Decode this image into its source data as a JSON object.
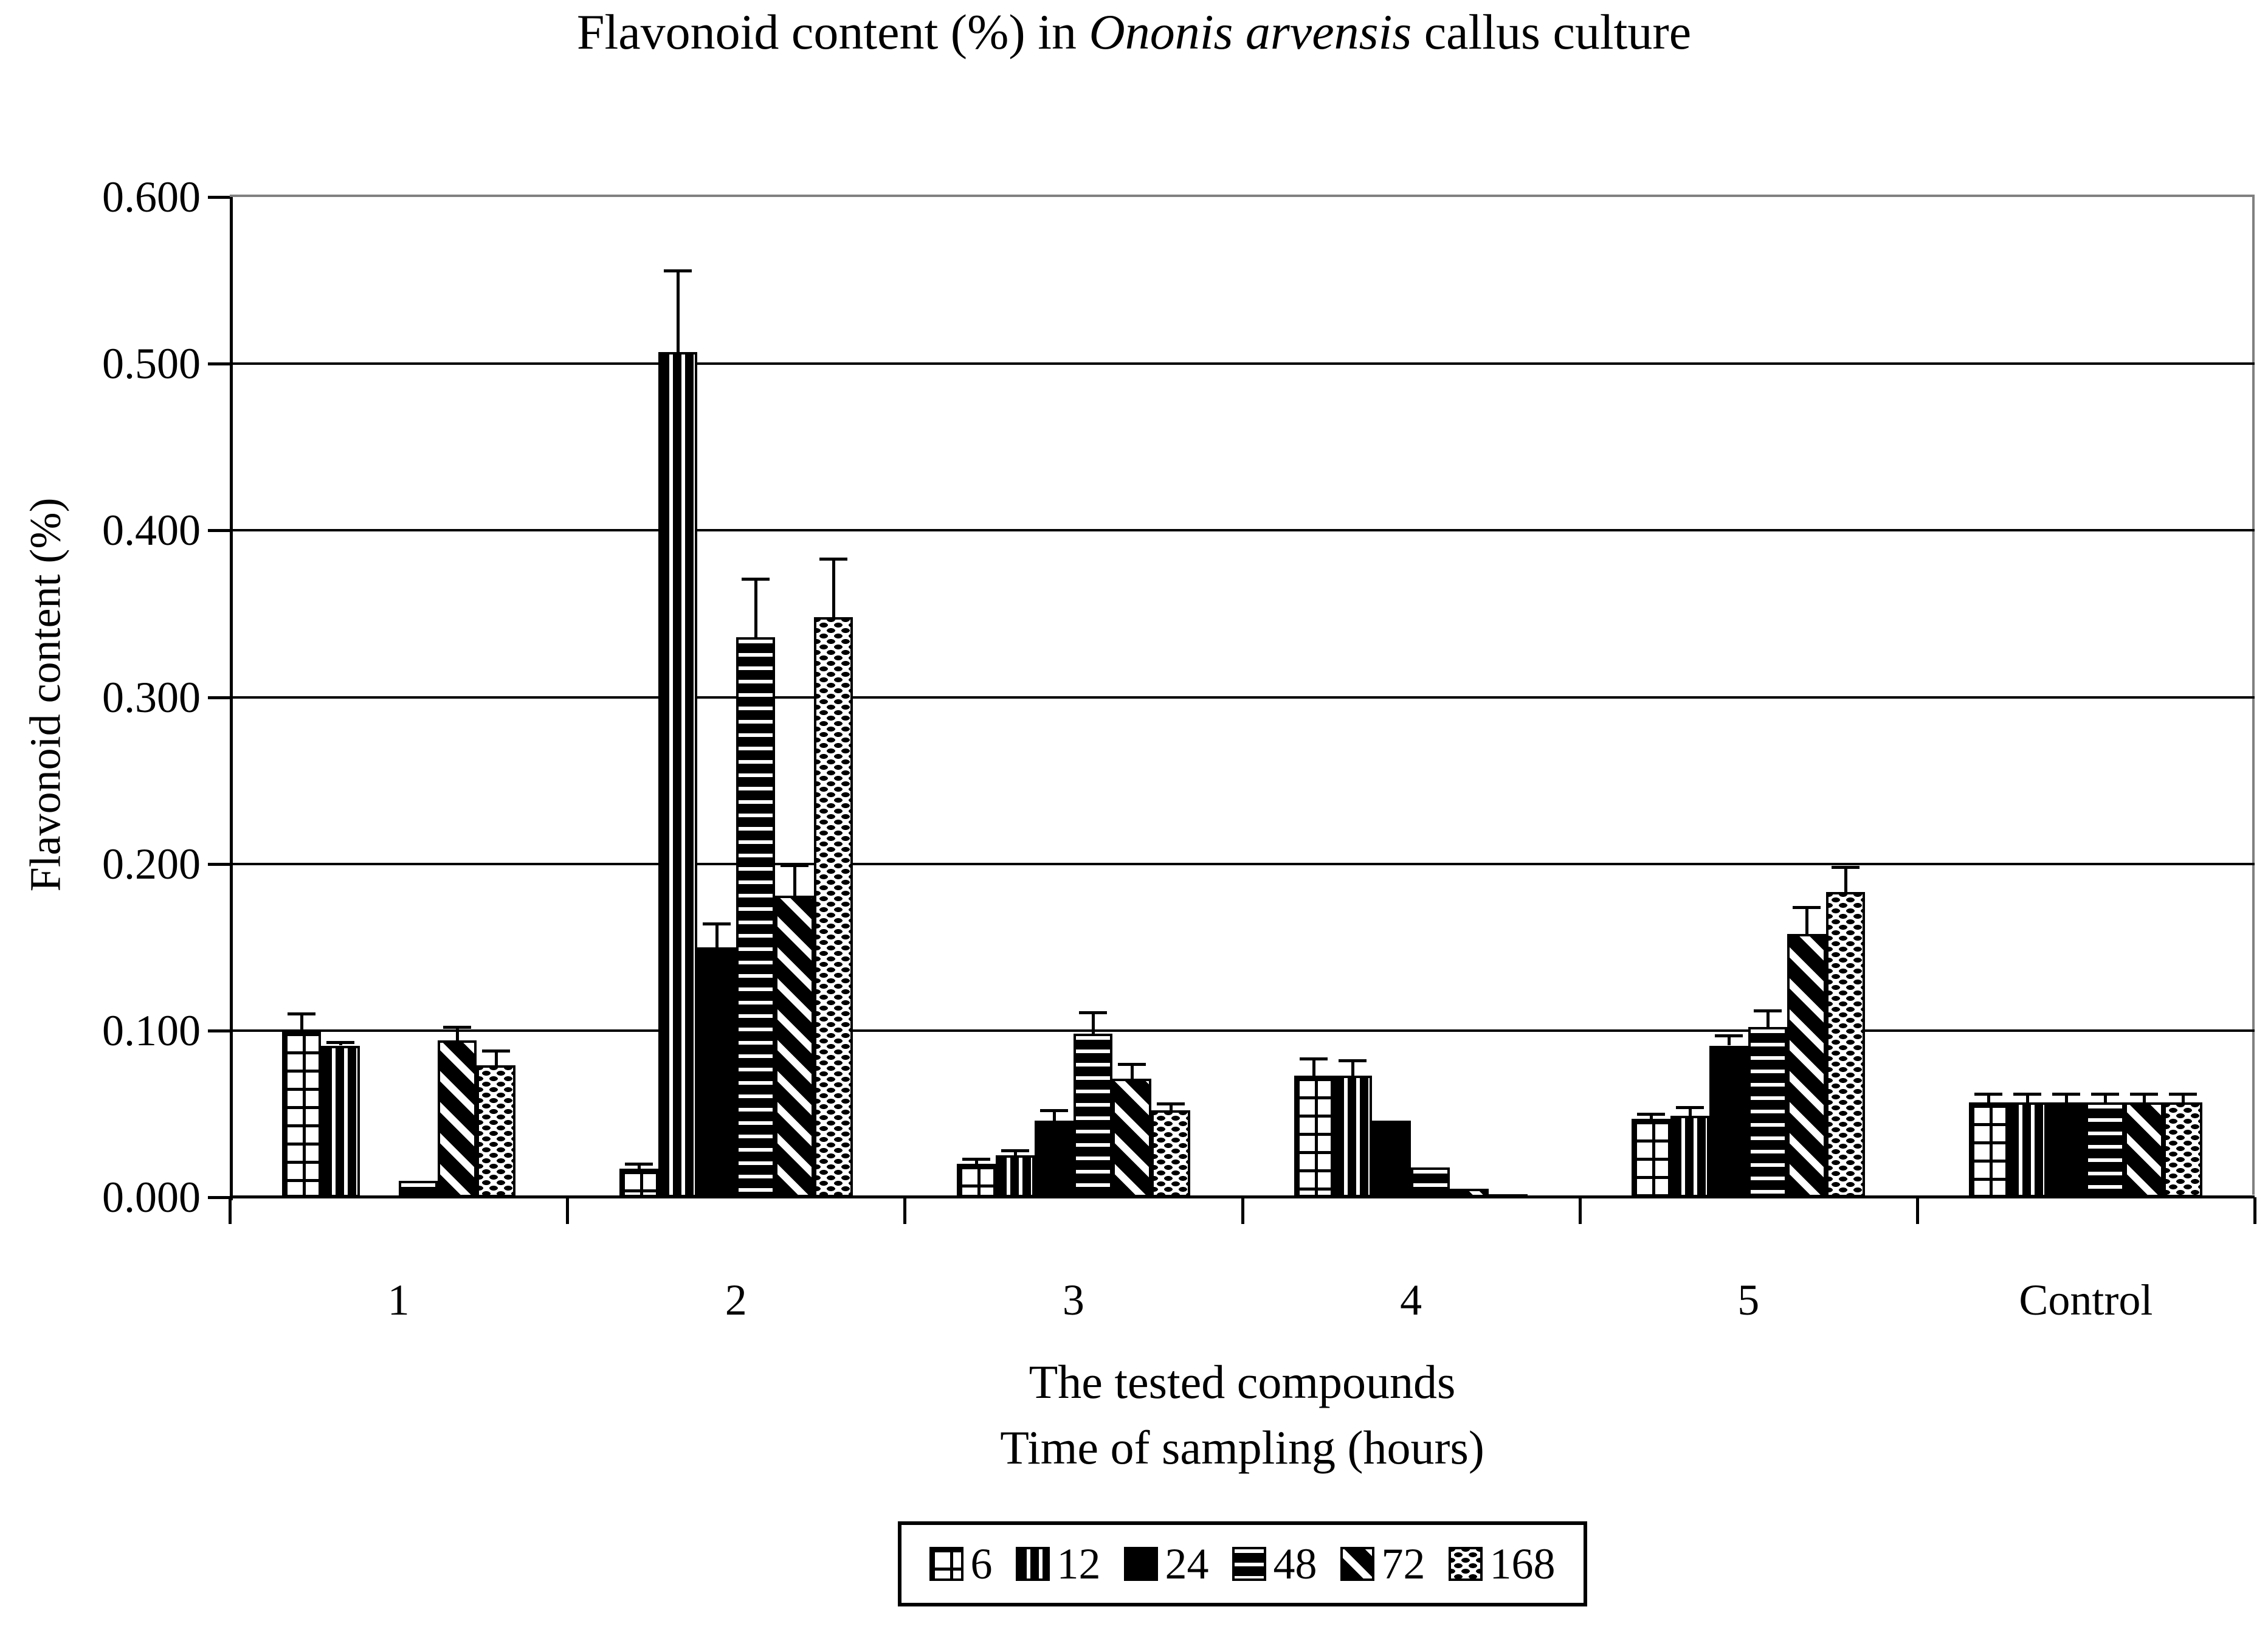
{
  "title": {
    "prefix": "Flavonoid content (%) in ",
    "species": "Ononis arvensis",
    "suffix": " callus culture"
  },
  "y_axis": {
    "label": "Flavonoid content (%)",
    "tick_labels": [
      "0.000",
      "0.100",
      "0.200",
      "0.300",
      "0.400",
      "0.500",
      "0.600"
    ]
  },
  "x_axis": {
    "title_line1": "The tested compounds",
    "title_line2": "Time of sampling (hours)",
    "categories": [
      "1",
      "2",
      "3",
      "4",
      "5",
      "Control"
    ]
  },
  "colors": {
    "ink": "#000000",
    "frame_gray": "#808080",
    "background": "#ffffff"
  },
  "chart_data": {
    "type": "bar",
    "title": "Flavonoid content (%) in Ononis arvensis callus culture",
    "categories": [
      "1",
      "2",
      "3",
      "4",
      "5",
      "Control"
    ],
    "xlabel": "The tested compounds",
    "xlabel2": "Time of sampling (hours)",
    "ylabel": "Flavonoid content (%)",
    "ylim": [
      0,
      0.6
    ],
    "ytick_step": 0.1,
    "grid": "horizontal",
    "legend_position": "bottom",
    "error_bars": "upper",
    "series": [
      {
        "name": "6",
        "pattern": "grid",
        "values": [
          0.1,
          0.017,
          0.02,
          0.073,
          0.047,
          0.057
        ],
        "errors": [
          0.01,
          0.003,
          0.003,
          0.01,
          0.003,
          0.005
        ]
      },
      {
        "name": "12",
        "pattern": "vertical-stripes",
        "values": [
          0.091,
          0.507,
          0.025,
          0.073,
          0.049,
          0.057
        ],
        "errors": [
          0.002,
          0.049,
          0.003,
          0.009,
          0.005,
          0.005
        ]
      },
      {
        "name": "24",
        "pattern": "solid",
        "values": [
          0.001,
          0.15,
          0.046,
          0.046,
          0.091,
          0.057
        ],
        "errors": [
          0,
          0.014,
          0.006,
          0,
          0.006,
          0.005
        ]
      },
      {
        "name": "48",
        "pattern": "horizontal-stripes",
        "values": [
          0.01,
          0.336,
          0.098,
          0.018,
          0.102,
          0.057
        ],
        "errors": [
          0,
          0.035,
          0.013,
          0,
          0.01,
          0.005
        ]
      },
      {
        "name": "72",
        "pattern": "diagonal-stripes",
        "values": [
          0.094,
          0.181,
          0.071,
          0.005,
          0.158,
          0.057
        ],
        "errors": [
          0.008,
          0.018,
          0.009,
          0,
          0.016,
          0.005
        ]
      },
      {
        "name": "168",
        "pattern": "dotted",
        "values": [
          0.079,
          0.348,
          0.052,
          0.002,
          0.183,
          0.057
        ],
        "errors": [
          0.009,
          0.035,
          0.004,
          0,
          0.015,
          0.005
        ]
      }
    ]
  }
}
